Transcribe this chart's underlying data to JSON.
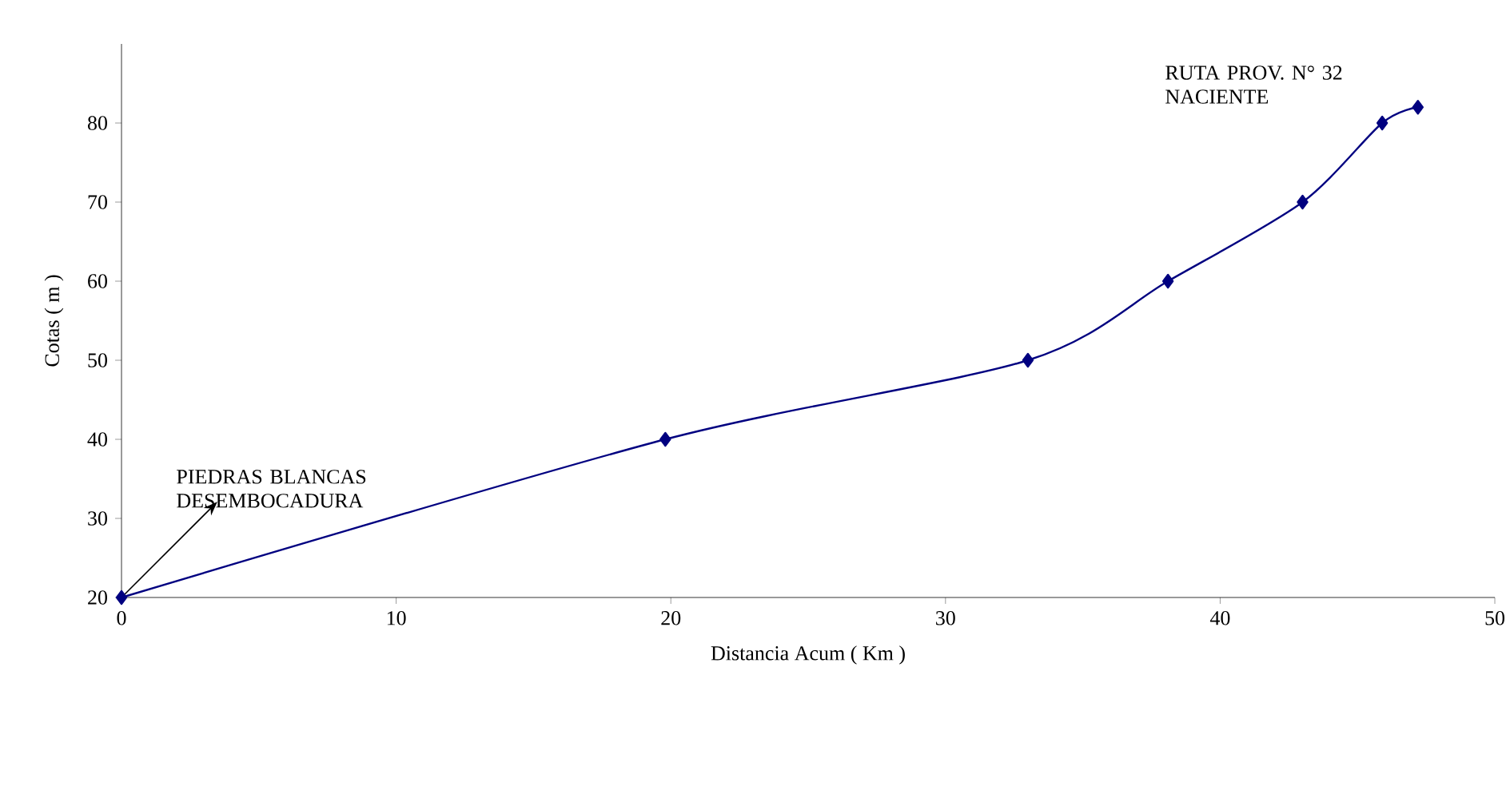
{
  "chart_data": {
    "type": "line",
    "xlabel": "Distancia Acum ( Km )",
    "ylabel": "Cotas ( m )",
    "x": [
      0,
      19.8,
      33,
      38.1,
      43,
      45.9,
      47.2
    ],
    "series": [
      {
        "color": "#000080",
        "values": [
          20,
          40,
          50,
          60,
          70,
          80,
          82
        ]
      }
    ],
    "xlim": [
      0,
      50
    ],
    "ylim": [
      20,
      90
    ],
    "xticks": [
      0,
      10,
      20,
      30,
      40,
      50
    ],
    "yticks": [
      20,
      30,
      40,
      50,
      60,
      70,
      80
    ],
    "marker": "diamond",
    "line_style": "solid",
    "annotations": [
      "PIEDRAS BLANCAS DESEMBOCADURA",
      "RUTA PROV. N° 32 NACIENTE"
    ]
  }
}
